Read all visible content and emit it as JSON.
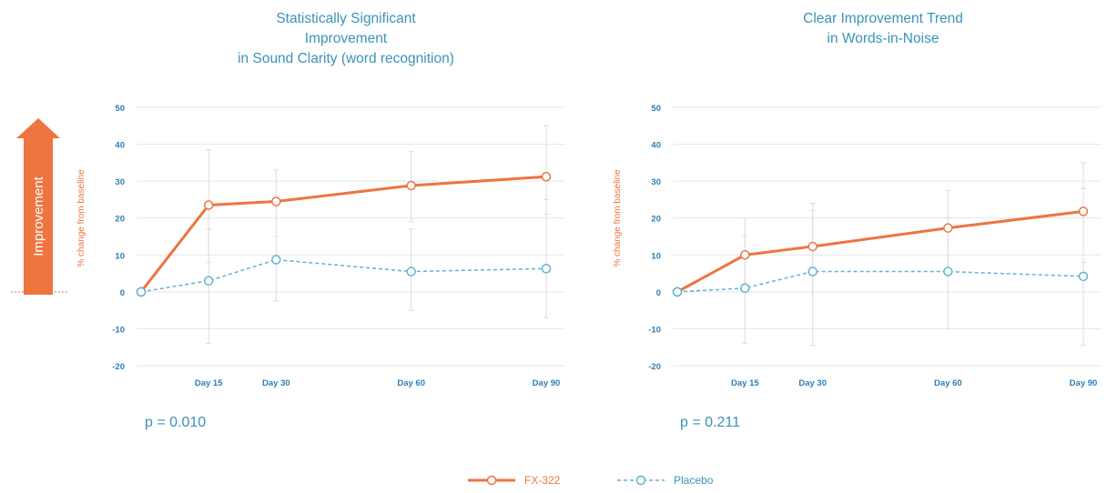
{
  "improvement_label": "Improvement",
  "colors": {
    "fx": "#ee7440",
    "placebo": "#5fb3d1",
    "axis_text": "#2c7fb8",
    "grid": "#e6e6e6"
  },
  "legend": {
    "fx": "FX-322",
    "placebo": "Placebo"
  },
  "charts": [
    {
      "title_lines": [
        "Statistically Significant",
        "Improvement",
        "in Sound Clarity (word recognition)"
      ],
      "p_value": "p = 0.010"
    },
    {
      "title_lines": [
        "Clear Improvement Trend",
        "in Words-in-Noise"
      ],
      "p_value": "p = 0.211"
    }
  ],
  "chart_data": [
    {
      "type": "line",
      "title": "Statistically Significant Improvement in Sound Clarity (word recognition)",
      "ylabel": "% change from baseline",
      "ylim": [
        -20,
        50
      ],
      "yticks": [
        50,
        40,
        30,
        20,
        10,
        0,
        -10,
        -20
      ],
      "x": [
        0,
        15,
        30,
        60,
        90
      ],
      "xtick_labels": [
        "Day 15",
        "Day 30",
        "Day 60",
        "Day 90"
      ],
      "xtick_values": [
        15,
        30,
        60,
        90
      ],
      "series": [
        {
          "name": "FX-322",
          "values": [
            0,
            23.5,
            24.5,
            28.8,
            31.2
          ],
          "err_low": [
            0,
            8,
            15,
            19,
            21
          ],
          "err_high": [
            0,
            38.5,
            33,
            38,
            45
          ]
        },
        {
          "name": "Placebo",
          "values": [
            0,
            3,
            8.7,
            5.5,
            6.3
          ],
          "err_low": [
            0,
            -14,
            -2.5,
            -5,
            -7
          ],
          "err_high": [
            0,
            17,
            15,
            17,
            25
          ]
        }
      ]
    },
    {
      "type": "line",
      "title": "Clear Improvement Trend in Words-in-Noise",
      "ylabel": "% change from baseline",
      "ylim": [
        -20,
        50
      ],
      "yticks": [
        50,
        40,
        30,
        20,
        10,
        0,
        -10,
        -20
      ],
      "x": [
        0,
        15,
        30,
        60,
        90
      ],
      "xtick_labels": [
        "Day 15",
        "Day 30",
        "Day 60",
        "Day 90"
      ],
      "xtick_values": [
        15,
        30,
        60,
        90
      ],
      "series": [
        {
          "name": "FX-322",
          "values": [
            0,
            10,
            12.3,
            17.3,
            21.8
          ],
          "err_low": [
            0,
            0,
            0,
            5,
            8
          ],
          "err_high": [
            0,
            20,
            24,
            27.5,
            35
          ]
        },
        {
          "name": "Placebo",
          "values": [
            0,
            1,
            5.5,
            5.5,
            4.2
          ],
          "err_low": [
            0,
            -14,
            -14.5,
            -10,
            -14.5
          ],
          "err_high": [
            0,
            15,
            22,
            20,
            28
          ]
        }
      ]
    }
  ]
}
